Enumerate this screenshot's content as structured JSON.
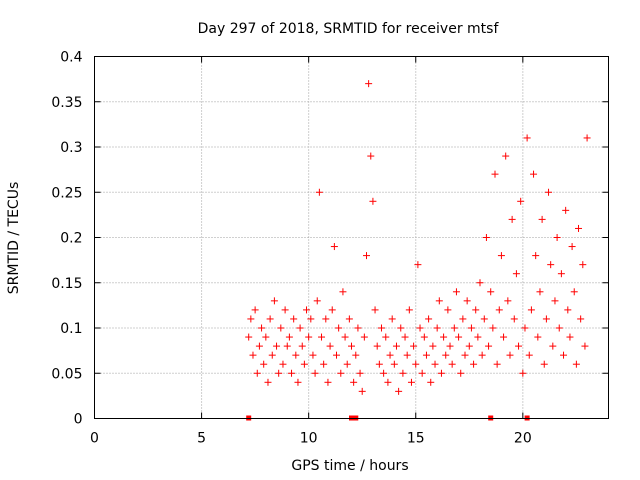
{
  "chart_data": {
    "type": "scatter",
    "title": "Day 297 of 2018, SRMTID for receiver mtsf",
    "xlabel": "GPS time / hours",
    "ylabel": "SRMTID / TECUs",
    "xlim": [
      0,
      24
    ],
    "ylim": [
      0,
      0.4
    ],
    "x_ticks": [
      "0",
      "5",
      "10",
      "15",
      "20"
    ],
    "y_ticks": [
      "0",
      "0.05",
      "0.1",
      "0.15",
      "0.2",
      "0.25",
      "0.3",
      "0.35",
      "0.4"
    ],
    "grid": true,
    "marker": "+",
    "color": "#ff0000",
    "series": [
      {
        "x": [
          7.2,
          7.3,
          7.4,
          7.5,
          7.6,
          7.7,
          7.8,
          7.9,
          8.0,
          8.1,
          8.2,
          8.3,
          8.4,
          8.5,
          8.6,
          8.7,
          8.8,
          8.9,
          9.0,
          9.1,
          9.2,
          9.3,
          9.4,
          9.5,
          9.6,
          9.7,
          9.8,
          9.9,
          10.0,
          10.1,
          10.2,
          10.3,
          10.4,
          10.5,
          10.6,
          10.7,
          10.8,
          10.9,
          11.0,
          11.1,
          11.2,
          11.3,
          11.4,
          11.5,
          11.6,
          11.7,
          11.8,
          11.9,
          12.0,
          12.1,
          12.2,
          12.3,
          12.4,
          12.5,
          12.6,
          12.7,
          12.8,
          12.9,
          13.0,
          13.1,
          13.2,
          13.3,
          13.4,
          13.5,
          13.6,
          13.7,
          13.8,
          13.9,
          14.0,
          14.1,
          14.2,
          14.3,
          14.4,
          14.5,
          14.6,
          14.7,
          14.8,
          14.9,
          15.0,
          15.1,
          15.2,
          15.3,
          15.4,
          15.5,
          15.6,
          15.7,
          15.8,
          15.9,
          16.0,
          16.1,
          16.2,
          16.3,
          16.4,
          16.5,
          16.6,
          16.7,
          16.8,
          16.9,
          17.0,
          17.1,
          17.2,
          17.3,
          17.4,
          17.5,
          17.6,
          17.7,
          17.8,
          17.9,
          18.0,
          18.1,
          18.2,
          18.3,
          18.4,
          18.5,
          18.6,
          18.7,
          18.8,
          18.9,
          19.0,
          19.1,
          19.2,
          19.3,
          19.4,
          19.5,
          19.6,
          19.7,
          19.8,
          19.9,
          20.0,
          20.1,
          20.2,
          20.3,
          20.4,
          20.5,
          20.6,
          20.7,
          20.8,
          20.9,
          21.0,
          21.1,
          21.2,
          21.3,
          21.4,
          21.5,
          21.6,
          21.7,
          21.8,
          21.9,
          22.0,
          22.1,
          22.2,
          22.3,
          22.4,
          22.5,
          22.6,
          22.7,
          22.8,
          22.9,
          23.0
        ],
        "y": [
          0.09,
          0.11,
          0.07,
          0.12,
          0.05,
          0.08,
          0.1,
          0.06,
          0.09,
          0.04,
          0.11,
          0.07,
          0.13,
          0.08,
          0.05,
          0.1,
          0.06,
          0.12,
          0.08,
          0.09,
          0.05,
          0.11,
          0.07,
          0.04,
          0.1,
          0.08,
          0.06,
          0.12,
          0.09,
          0.11,
          0.07,
          0.05,
          0.13,
          0.25,
          0.09,
          0.06,
          0.11,
          0.04,
          0.08,
          0.12,
          0.19,
          0.07,
          0.1,
          0.05,
          0.14,
          0.09,
          0.06,
          0.11,
          0.08,
          0.04,
          0.07,
          0.1,
          0.05,
          0.03,
          0.09,
          0.18,
          0.37,
          0.29,
          0.24,
          0.12,
          0.08,
          0.06,
          0.1,
          0.05,
          0.09,
          0.04,
          0.07,
          0.11,
          0.06,
          0.08,
          0.03,
          0.1,
          0.05,
          0.09,
          0.07,
          0.12,
          0.04,
          0.08,
          0.06,
          0.17,
          0.1,
          0.05,
          0.09,
          0.07,
          0.11,
          0.04,
          0.08,
          0.06,
          0.1,
          0.13,
          0.05,
          0.09,
          0.07,
          0.12,
          0.08,
          0.06,
          0.1,
          0.14,
          0.09,
          0.05,
          0.11,
          0.07,
          0.13,
          0.08,
          0.1,
          0.06,
          0.12,
          0.09,
          0.15,
          0.07,
          0.11,
          0.2,
          0.08,
          0.14,
          0.1,
          0.27,
          0.06,
          0.12,
          0.18,
          0.09,
          0.29,
          0.13,
          0.07,
          0.22,
          0.11,
          0.16,
          0.08,
          0.24,
          0.05,
          0.1,
          0.31,
          0.07,
          0.12,
          0.27,
          0.18,
          0.09,
          0.14,
          0.22,
          0.06,
          0.11,
          0.25,
          0.17,
          0.08,
          0.13,
          0.2,
          0.1,
          0.16,
          0.07,
          0.23,
          0.12,
          0.09,
          0.19,
          0.14,
          0.06,
          0.21,
          0.11,
          0.17,
          0.08,
          0.31
        ],
        "zero_markers_x": [
          7.2,
          12.0,
          12.2,
          18.5,
          20.2
        ]
      }
    ]
  }
}
